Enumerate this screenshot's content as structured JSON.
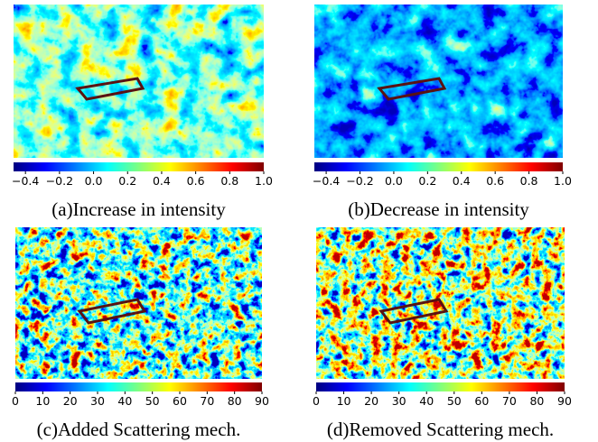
{
  "panels": [
    {
      "caption": "(a)Increase in intensity",
      "colorbar": {
        "lim": [
          -0.47,
          1.0
        ],
        "ticks": [
          {
            "value": -0.4,
            "label": "−0.4"
          },
          {
            "value": -0.2,
            "label": "−0.2"
          },
          {
            "value": 0,
            "label": "0.0"
          },
          0.2,
          0.4,
          0.6,
          0.8,
          {
            "value": 1,
            "label": "1.0"
          }
        ]
      }
    },
    {
      "caption": "(b)Decrease in intensity",
      "colorbar": {
        "lim": [
          -0.47,
          1.0
        ],
        "ticks": [
          {
            "value": -0.4,
            "label": "−0.4"
          },
          {
            "value": -0.2,
            "label": "−0.2"
          },
          {
            "value": 0,
            "label": "0.0"
          },
          0.2,
          0.4,
          0.6,
          0.8,
          {
            "value": 1,
            "label": "1.0"
          }
        ]
      }
    },
    {
      "caption": "(c)Added Scattering mech.",
      "colorbar": {
        "lim": [
          0,
          90
        ],
        "ticks": [
          0,
          10,
          20,
          30,
          40,
          50,
          60,
          70,
          80,
          90
        ]
      }
    },
    {
      "caption": "(d)Removed Scattering mech.",
      "colorbar": {
        "lim": [
          0,
          90
        ],
        "ticks": [
          0,
          10,
          20,
          30,
          40,
          50,
          60,
          70,
          80,
          90
        ]
      }
    }
  ]
}
